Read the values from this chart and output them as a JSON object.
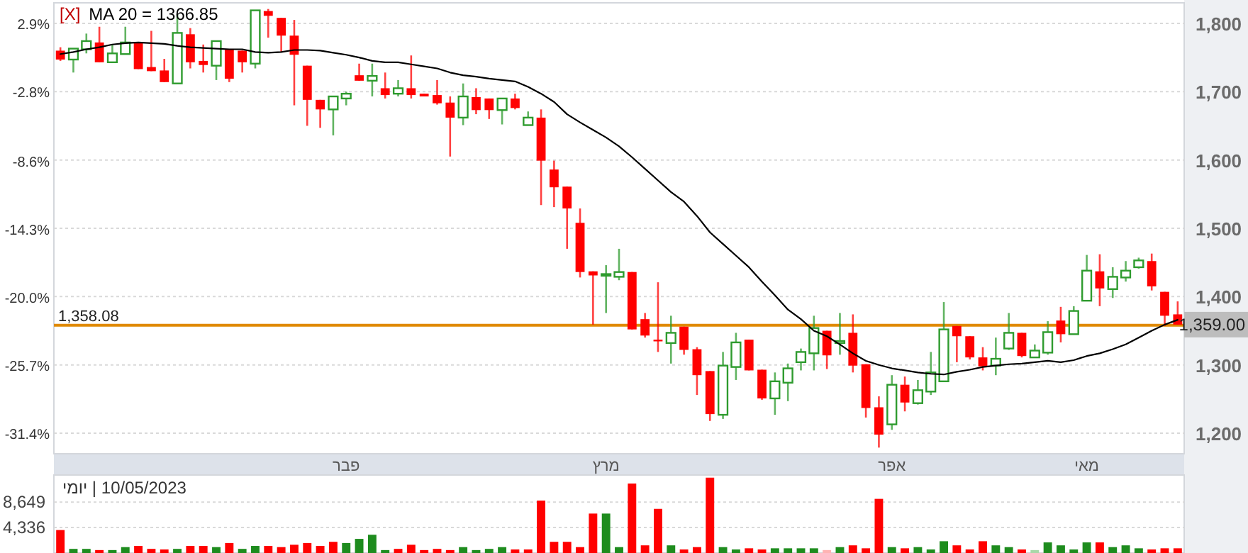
{
  "chart_data": [
    {
      "type": "candlestick",
      "categories": [
        null,
        null,
        null,
        null,
        null,
        null,
        null,
        null,
        null,
        null,
        null,
        null,
        null,
        null,
        null,
        null,
        null,
        null,
        null,
        null,
        null,
        null,
        "פבר",
        null,
        null,
        null,
        null,
        null,
        null,
        null,
        null,
        null,
        null,
        null,
        null,
        null,
        null,
        null,
        null,
        null,
        null,
        null,
        "מרץ",
        null,
        null,
        null,
        null,
        null,
        null,
        null,
        null,
        null,
        null,
        null,
        null,
        null,
        null,
        null,
        null,
        null,
        null,
        null,
        null,
        null,
        "אפר",
        null,
        null,
        null,
        null,
        null,
        null,
        null,
        null,
        null,
        null,
        null,
        null,
        null,
        null,
        "מאי",
        null,
        null,
        null,
        null,
        null,
        null,
        null
      ],
      "series": [
        {
          "type": "candlestick",
          "ohlc": [
            [
              1760,
              1765,
              1745,
              1747
            ],
            [
              1747,
              1763,
              1728,
              1763
            ],
            [
              1762,
              1785,
              1756,
              1774
            ],
            [
              1772,
              1795,
              1743,
              1743
            ],
            [
              1743,
              1769,
              1743,
              1756
            ],
            [
              1755,
              1795,
              1755,
              1772
            ],
            [
              1772,
              1772,
              1733,
              1733
            ],
            [
              1736,
              1789,
              1730,
              1730
            ],
            [
              1731,
              1748,
              1714,
              1714
            ],
            [
              1712,
              1813,
              1712,
              1786
            ],
            [
              1784,
              1793,
              1734,
              1743
            ],
            [
              1745,
              1769,
              1728,
              1739
            ],
            [
              1738,
              1774,
              1717,
              1774
            ],
            [
              1762,
              1762,
              1714,
              1719
            ],
            [
              1760,
              1760,
              1728,
              1743
            ],
            [
              1741,
              1819,
              1734,
              1819
            ],
            [
              1818,
              1821,
              1779,
              1811
            ],
            [
              1808,
              1808,
              1758,
              1782
            ],
            [
              1782,
              1805,
              1680,
              1754
            ],
            [
              1738,
              1738,
              1650,
              1688
            ],
            [
              1688,
              1688,
              1647,
              1674
            ],
            [
              1674,
              1693,
              1636,
              1693
            ],
            [
              1690,
              1700,
              1680,
              1697
            ],
            [
              1724,
              1741,
              1716,
              1716
            ],
            [
              1716,
              1741,
              1693,
              1723
            ],
            [
              1705,
              1728,
              1690,
              1695
            ],
            [
              1697,
              1717,
              1693,
              1705
            ],
            [
              1705,
              1753,
              1690,
              1695
            ],
            [
              1697,
              1697,
              1693,
              1693
            ],
            [
              1695,
              1717,
              1681,
              1683
            ],
            [
              1684,
              1693,
              1605,
              1662
            ],
            [
              1662,
              1712,
              1651,
              1693
            ],
            [
              1692,
              1705,
              1667,
              1673
            ],
            [
              1690,
              1690,
              1660,
              1673
            ],
            [
              1673,
              1690,
              1652,
              1690
            ],
            [
              1690,
              1697,
              1674,
              1676
            ],
            [
              1651,
              1671,
              1651,
              1662
            ],
            [
              1662,
              1674,
              1534,
              1599
            ],
            [
              1586,
              1599,
              1531,
              1560
            ],
            [
              1561,
              1561,
              1470,
              1529
            ],
            [
              1508,
              1529,
              1428,
              1436
            ],
            [
              1437,
              1437,
              1359,
              1431
            ],
            [
              1431,
              1446,
              1376,
              1433
            ],
            [
              1429,
              1470,
              1424,
              1436
            ],
            [
              1436,
              1436,
              1352,
              1352
            ],
            [
              1367,
              1376,
              1340,
              1343
            ],
            [
              1337,
              1421,
              1319,
              1335
            ],
            [
              1332,
              1372,
              1302,
              1347
            ],
            [
              1356,
              1356,
              1315,
              1322
            ],
            [
              1323,
              1326,
              1256,
              1285
            ],
            [
              1291,
              1291,
              1218,
              1228
            ],
            [
              1227,
              1319,
              1221,
              1299
            ],
            [
              1297,
              1347,
              1278,
              1333
            ],
            [
              1337,
              1337,
              1292,
              1292
            ],
            [
              1293,
              1293,
              1249,
              1251
            ],
            [
              1251,
              1289,
              1227,
              1276
            ],
            [
              1274,
              1302,
              1247,
              1295
            ],
            [
              1304,
              1324,
              1292,
              1319
            ],
            [
              1317,
              1372,
              1292,
              1354
            ],
            [
              1350,
              1350,
              1294,
              1314
            ],
            [
              1332,
              1376,
              1315,
              1335
            ],
            [
              1347,
              1374,
              1289,
              1299
            ],
            [
              1301,
              1301,
              1223,
              1237
            ],
            [
              1238,
              1254,
              1179,
              1198
            ],
            [
              1213,
              1285,
              1205,
              1271
            ],
            [
              1271,
              1283,
              1232,
              1245
            ],
            [
              1244,
              1278,
              1242,
              1263
            ],
            [
              1261,
              1319,
              1256,
              1289
            ],
            [
              1276,
              1392,
              1276,
              1352
            ],
            [
              1357,
              1357,
              1304,
              1342
            ],
            [
              1342,
              1342,
              1308,
              1311
            ],
            [
              1311,
              1326,
              1292,
              1298
            ],
            [
              1299,
              1340,
              1285,
              1309
            ],
            [
              1324,
              1376,
              1322,
              1347
            ],
            [
              1347,
              1347,
              1311,
              1313
            ],
            [
              1311,
              1330,
              1311,
              1321
            ],
            [
              1318,
              1364,
              1315,
              1348
            ],
            [
              1365,
              1385,
              1333,
              1345
            ],
            [
              1345,
              1386,
              1345,
              1379
            ],
            [
              1394,
              1461,
              1394,
              1438
            ],
            [
              1437,
              1462,
              1386,
              1412
            ],
            [
              1411,
              1443,
              1398,
              1429
            ],
            [
              1428,
              1452,
              1422,
              1438
            ],
            [
              1443,
              1457,
              1441,
              1453
            ],
            [
              1452,
              1463,
              1409,
              1415
            ],
            [
              1407,
              1407,
              1357,
              1372
            ],
            [
              1374,
              1393,
              1359,
              1359
            ]
          ],
          "colors": [
            "#ff0000",
            "#2e9b2e",
            "#2e9b2e",
            "#ff0000",
            "#2e9b2e",
            "#2e9b2e",
            "#ff0000",
            "#ff0000",
            "#ff0000",
            "#2e9b2e",
            "#ff0000",
            "#ff0000",
            "#2e9b2e",
            "#ff0000",
            "#ff0000",
            "#2e9b2e",
            "#ff0000",
            "#ff0000",
            "#ff0000",
            "#ff0000",
            "#ff0000",
            "#2e9b2e",
            "#2e9b2e",
            "#ff0000",
            "#2e9b2e",
            "#ff0000",
            "#2e9b2e",
            "#ff0000",
            "#ff0000",
            "#ff0000",
            "#ff0000",
            "#2e9b2e",
            "#ff0000",
            "#ff0000",
            "#2e9b2e",
            "#ff0000",
            "#2e9b2e",
            "#ff0000",
            "#ff0000",
            "#ff0000",
            "#ff0000",
            "#ff0000",
            "#2e9b2e",
            "#2e9b2e",
            "#ff0000",
            "#ff0000",
            "#ff0000",
            "#2e9b2e",
            "#ff0000",
            "#ff0000",
            "#ff0000",
            "#2e9b2e",
            "#2e9b2e",
            "#ff0000",
            "#ff0000",
            "#2e9b2e",
            "#2e9b2e",
            "#2e9b2e",
            "#2e9b2e",
            "#ff0000",
            "#2e9b2e",
            "#ff0000",
            "#ff0000",
            "#ff0000",
            "#2e9b2e",
            "#ff0000",
            "#2e9b2e",
            "#2e9b2e",
            "#2e9b2e",
            "#ff0000",
            "#ff0000",
            "#ff0000",
            "#2e9b2e",
            "#2e9b2e",
            "#ff0000",
            "#2e9b2e",
            "#2e9b2e",
            "#ff0000",
            "#2e9b2e",
            "#2e9b2e",
            "#ff0000",
            "#2e9b2e",
            "#2e9b2e",
            "#2e9b2e",
            "#ff0000",
            "#ff0000",
            "#ff0000"
          ]
        },
        {
          "type": "line",
          "name": "MA 20 = 1366.85",
          "color": "#000000",
          "values": [
            1755,
            1758,
            1762,
            1765,
            1769,
            1771,
            1772,
            1771,
            1770,
            1767,
            1765,
            1764,
            1763,
            1762,
            1762,
            1758,
            1757,
            1758,
            1761,
            1761,
            1760,
            1757,
            1754,
            1750,
            1745,
            1743,
            1743,
            1740,
            1737,
            1734,
            1728,
            1724,
            1722,
            1719,
            1717,
            1715,
            1707,
            1697,
            1685,
            1667,
            1655,
            1644,
            1633,
            1620,
            1604,
            1587,
            1570,
            1553,
            1539,
            1518,
            1494,
            1477,
            1460,
            1443,
            1422,
            1402,
            1381,
            1367,
            1350,
            1342,
            1330,
            1317,
            1306,
            1300,
            1295,
            1292,
            1289,
            1287,
            1286,
            1290,
            1293,
            1297,
            1299,
            1301,
            1302,
            1304,
            1306,
            1304,
            1307,
            1313,
            1317,
            1323,
            1330,
            1340,
            1350,
            1359,
            1366
          ]
        }
      ],
      "ylim": [
        1170,
        1830
      ],
      "yticks": [
        {
          "value": 1200,
          "label": "1,200"
        },
        {
          "value": 1300,
          "label": "1,300"
        },
        {
          "value": 1400,
          "label": "1,400"
        },
        {
          "value": 1500,
          "label": "1,500"
        },
        {
          "value": 1600,
          "label": "1,600"
        },
        {
          "value": 1700,
          "label": "1,700"
        },
        {
          "value": 1800,
          "label": "1,800"
        }
      ],
      "y2lim": [
        -33.1,
        4.6
      ],
      "y2ticks": [
        {
          "value": -31.4,
          "label": "-31.4%"
        },
        {
          "value": -25.7,
          "label": "-25.7%"
        },
        {
          "value": -20.0,
          "label": "-20.0%"
        },
        {
          "value": -14.3,
          "label": "-14.3%"
        },
        {
          "value": -8.6,
          "label": "-8.6%"
        },
        {
          "value": -2.8,
          "label": "-2.8%"
        },
        {
          "value": 2.9,
          "label": "2.9%"
        }
      ],
      "grid": "y",
      "legend": "top left",
      "ref_lines": [
        {
          "axis": "y",
          "value": 1358.08,
          "label": "1,358.08",
          "color": "#e08a00"
        }
      ],
      "annotations": [
        "[X]",
        "1,359.00"
      ]
    },
    {
      "type": "bar",
      "categories": [
        null,
        null,
        null,
        null,
        null,
        null,
        null,
        null,
        null,
        null,
        null,
        null,
        null,
        null,
        null,
        null,
        null,
        null,
        null,
        null,
        null,
        null,
        null,
        null,
        null,
        null,
        null,
        null,
        null,
        null,
        null,
        null,
        null,
        null,
        null,
        null,
        null,
        null,
        null,
        null,
        null,
        null,
        null,
        null,
        null,
        null,
        null,
        null,
        null,
        null,
        null,
        null,
        null,
        null,
        null,
        null,
        null,
        null,
        null,
        null,
        null,
        null,
        null,
        null,
        null,
        null,
        null,
        null,
        null,
        null,
        null,
        null,
        null,
        null,
        null,
        null,
        null,
        null,
        null,
        null,
        null,
        null,
        null,
        null,
        null,
        null,
        null
      ],
      "values": [
        3900,
        700,
        700,
        500,
        500,
        1000,
        1200,
        700,
        600,
        700,
        1200,
        1200,
        1000,
        1700,
        700,
        1200,
        1200,
        1000,
        1400,
        1700,
        1200,
        1900,
        1700,
        2400,
        3100,
        500,
        700,
        1400,
        500,
        700,
        500,
        1000,
        500,
        700,
        1000,
        600,
        600,
        8900,
        1900,
        1900,
        1000,
        6700,
        6700,
        1000,
        11800,
        1300,
        7500,
        1300,
        600,
        1000,
        12800,
        1000,
        600,
        800,
        600,
        800,
        800,
        800,
        800,
        500,
        1000,
        1300,
        800,
        9200,
        1000,
        800,
        1000,
        600,
        2000,
        1300,
        600,
        2000,
        1300,
        1000,
        600,
        500,
        1800,
        1300,
        600,
        1800,
        1800,
        1000,
        1300,
        800,
        600,
        800,
        800
      ],
      "colors": [
        "#ff0000",
        "#1e8c1e",
        "#1e8c1e",
        "#ff0000",
        "#1e8c1e",
        "#1e8c1e",
        "#ff0000",
        "#ff0000",
        "#ff0000",
        "#1e8c1e",
        "#ff0000",
        "#ff0000",
        "#1e8c1e",
        "#ff0000",
        "#1e8c1e",
        "#1e8c1e",
        "#ff0000",
        "#ff0000",
        "#ff0000",
        "#ff0000",
        "#ff0000",
        "#ff0000",
        "#1e8c1e",
        "#1e8c1e",
        "#1e8c1e",
        "#1e8c1e",
        "#ff0000",
        "#ff0000",
        "#ff0000",
        "#ff0000",
        "#ff0000",
        "#1e8c1e",
        "#1e8c1e",
        "#1e8c1e",
        "#1e8c1e",
        "#ff0000",
        "#ff0000",
        "#ff0000",
        "#ff0000",
        "#ff0000",
        "#ff0000",
        "#ff0000",
        "#1e8c1e",
        "#1e8c1e",
        "#ff0000",
        "#ff0000",
        "#ff0000",
        "#1e8c1e",
        "#ff0000",
        "#ff0000",
        "#ff0000",
        "#1e8c1e",
        "#1e8c1e",
        "#ff0000",
        "#ff0000",
        "#1e8c1e",
        "#1e8c1e",
        "#1e8c1e",
        "#1e8c1e",
        "#ffb3b3",
        "#1e8c1e",
        "#ff0000",
        "#ff0000",
        "#ff0000",
        "#1e8c1e",
        "#ff0000",
        "#1e8c1e",
        "#1e8c1e",
        "#1e8c1e",
        "#ff0000",
        "#ff0000",
        "#ff0000",
        "#1e8c1e",
        "#1e8c1e",
        "#ff0000",
        "#a8d8a8",
        "#1e8c1e",
        "#1e8c1e",
        "#1e8c1e",
        "#1e8c1e",
        "#ff0000",
        "#1e8c1e",
        "#1e8c1e",
        "#1e8c1e",
        "#ff0000",
        "#ff0000",
        "#ff0000"
      ],
      "ylim": [
        0,
        13250
      ],
      "yticks": [
        {
          "value": 4336,
          "label": "4,336"
        },
        {
          "value": 8649,
          "label": "8,649"
        }
      ],
      "grid": "y",
      "tick_labels": "y",
      "annotations": [
        "10/05/2023 | יומי"
      ]
    }
  ]
}
